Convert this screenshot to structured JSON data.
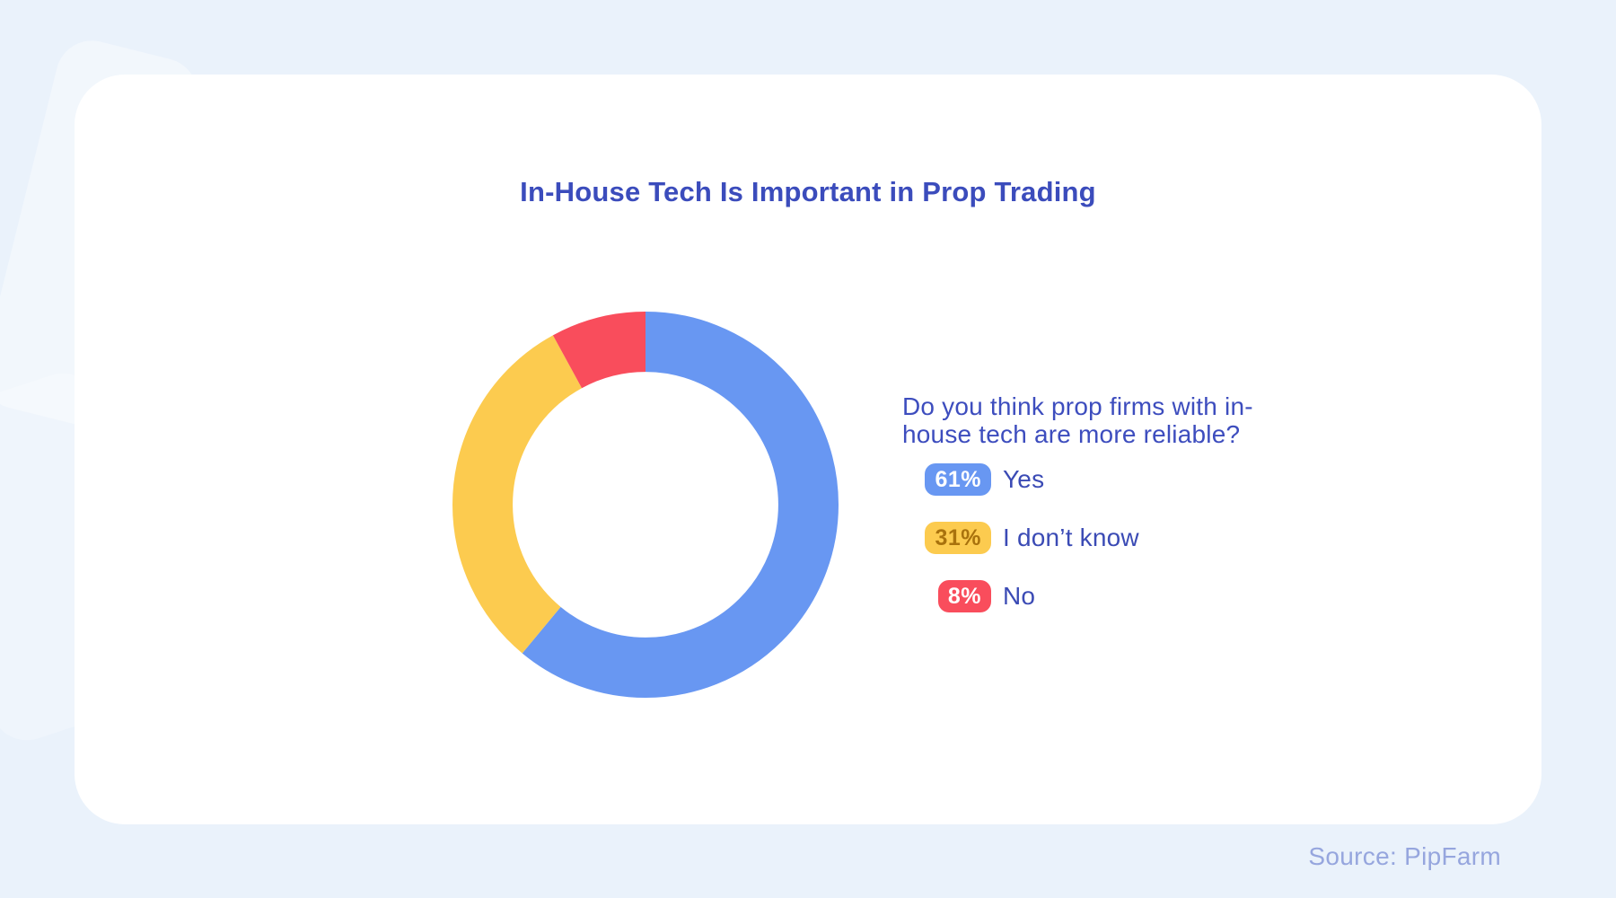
{
  "page": {
    "background_color": "#EAF2FB",
    "card_color": "#FFFFFF"
  },
  "card": {
    "title": "In-House Tech Is Important in Prop Trading",
    "title_color": "#3B4CBC",
    "question_line1": "Do you think prop firms with in-",
    "question_line2": "house tech are more reliable?",
    "question_full": "Do you think prop firms with in-house tech are more reliable?"
  },
  "chart_data": {
    "type": "pie",
    "subtype": "donut",
    "title": "In-House Tech Is Important in Prop Trading",
    "question": "Do you think prop firms with in-house tech are more reliable?",
    "categories": [
      "Yes",
      "I don’t know",
      "No"
    ],
    "values": [
      61,
      31,
      8
    ],
    "unit": "%",
    "colors": [
      "#6897F2",
      "#FCCB4F",
      "#F94D5C"
    ],
    "start_angle_deg": 0,
    "direction": "clockwise",
    "inner_radius_ratio": 0.688,
    "legend_position": "right",
    "legend": [
      {
        "value_label": "61%",
        "label": "Yes",
        "badge_bg": "#6897F2",
        "badge_text": "#FFFFFF"
      },
      {
        "value_label": "31%",
        "label": "I don’t know",
        "badge_bg": "#FCCB4F",
        "badge_text": "#A9720D"
      },
      {
        "value_label": "8%",
        "label": "No",
        "badge_bg": "#F94D5C",
        "badge_text": "#FFFFFF"
      }
    ]
  },
  "footer": {
    "source": "Source: PipFarm",
    "source_color": "#96A6DE"
  }
}
